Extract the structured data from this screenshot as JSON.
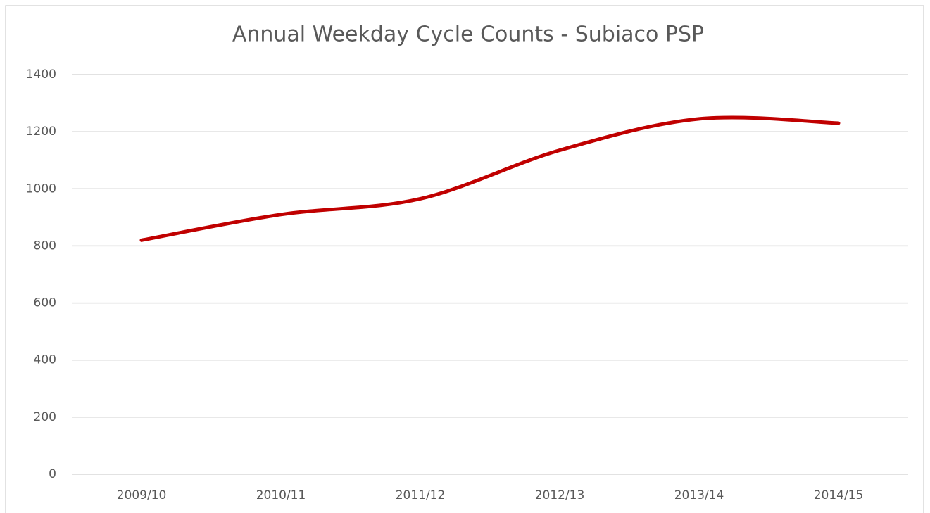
{
  "chart_data": {
    "type": "line",
    "title": "Annual Weekday Cycle Counts - Subiaco PSP",
    "categories": [
      "2009/10",
      "2010/11",
      "2011/12",
      "2012/13",
      "2013/14",
      "2014/15"
    ],
    "series": [
      {
        "name": "Subiaco PSP",
        "color": "#c00000",
        "values": [
          820,
          910,
          965,
          1135,
          1245,
          1230
        ]
      }
    ],
    "ylim": [
      0,
      1400
    ],
    "yticks": [
      0,
      200,
      400,
      600,
      800,
      1000,
      1200,
      1400
    ],
    "grid": true,
    "smooth": true
  }
}
